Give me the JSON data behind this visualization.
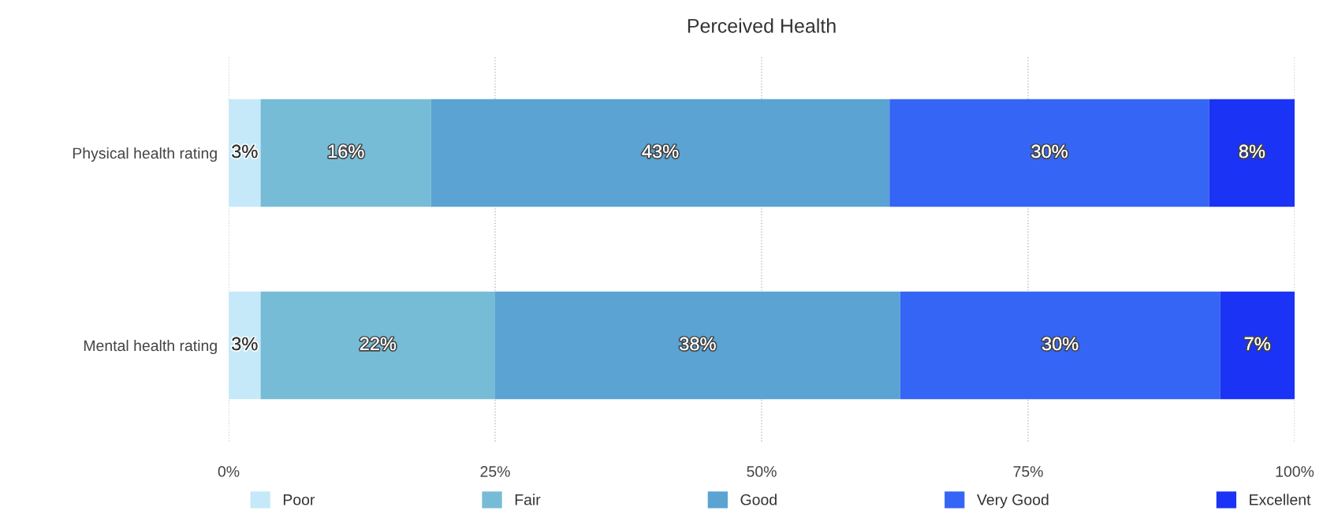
{
  "chart_data": {
    "type": "bar",
    "orientation": "horizontal",
    "stacked": true,
    "title": "Perceived Health",
    "categories": [
      "Physical health rating",
      "Mental health rating"
    ],
    "series": [
      {
        "name": "Poor",
        "color": "#c6e9f9",
        "values": [
          3,
          3
        ],
        "value_labels": [
          "3%",
          "3%"
        ]
      },
      {
        "name": "Fair",
        "color": "#77bcd6",
        "values": [
          16,
          22
        ],
        "value_labels": [
          "16%",
          "22%"
        ]
      },
      {
        "name": "Good",
        "color": "#5aa3d3",
        "values": [
          43,
          38
        ],
        "value_labels": [
          "43%",
          "38%"
        ]
      },
      {
        "name": "Very Good",
        "color": "#3565f5",
        "values": [
          30,
          30
        ],
        "value_labels": [
          "30%",
          "30%"
        ]
      },
      {
        "name": "Excellent",
        "color": "#1a33f5",
        "values": [
          8,
          7
        ],
        "value_labels": [
          "8%",
          "7%"
        ]
      }
    ],
    "xlim": [
      0,
      100
    ],
    "xticks": [
      {
        "value": 0,
        "label": "0%"
      },
      {
        "value": 25,
        "label": "25%"
      },
      {
        "value": 50,
        "label": "50%"
      },
      {
        "value": 75,
        "label": "75%"
      },
      {
        "value": 100,
        "label": "100%"
      }
    ],
    "grid": "x",
    "legend": "bottom"
  }
}
